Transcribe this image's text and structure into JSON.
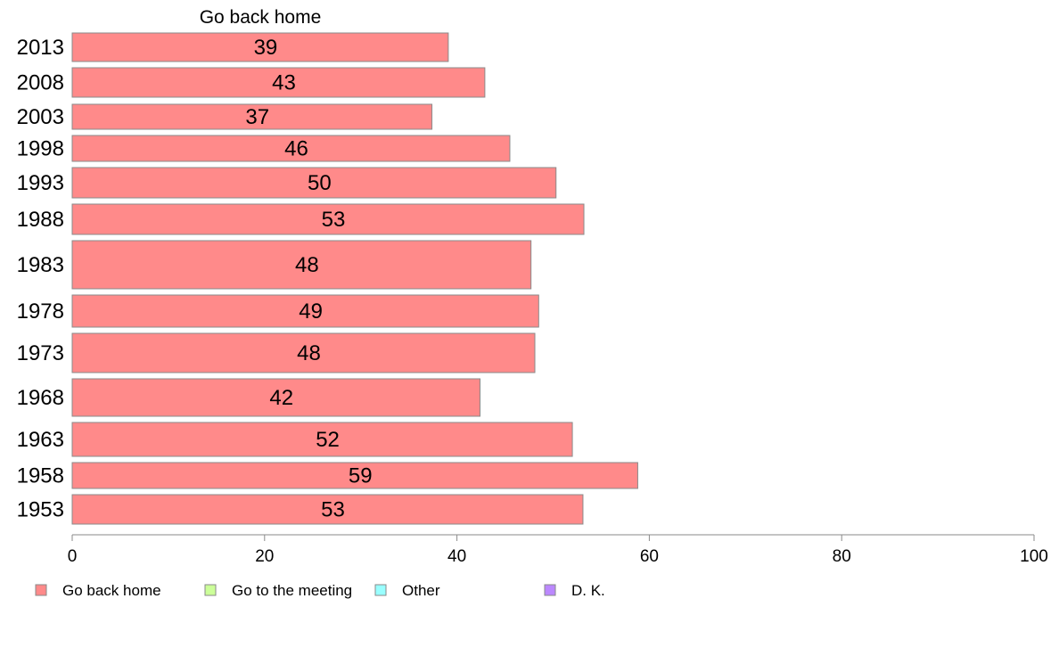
{
  "chart_data": {
    "type": "bar",
    "orientation": "horizontal",
    "series_title": "Go back home",
    "categories": [
      "2013",
      "2008",
      "2003",
      "1998",
      "1993",
      "1988",
      "1983",
      "1978",
      "1973",
      "1968",
      "1963",
      "1958",
      "1953"
    ],
    "series": [
      {
        "name": "Go back home",
        "values": [
          39,
          43,
          37,
          46,
          50,
          53,
          48,
          49,
          48,
          42,
          52,
          59,
          53
        ]
      }
    ],
    "plotted_values": [
      39.1,
      42.9,
      37.4,
      45.5,
      50.3,
      53.2,
      47.7,
      48.5,
      48.1,
      42.4,
      52.0,
      58.8,
      53.1
    ],
    "xlim": [
      0,
      100
    ],
    "x_ticks": [
      "0",
      "20",
      "40",
      "60",
      "80",
      "100"
    ],
    "grid": false,
    "legend_position": "bottom",
    "legend": [
      {
        "label": "Go back home",
        "color": "#ff8a8a"
      },
      {
        "label": "Go to the meeting",
        "color": "#ccff99"
      },
      {
        "label": "Other",
        "color": "#99ffff"
      },
      {
        "label": "D. K.",
        "color": "#bb88ff"
      }
    ]
  }
}
